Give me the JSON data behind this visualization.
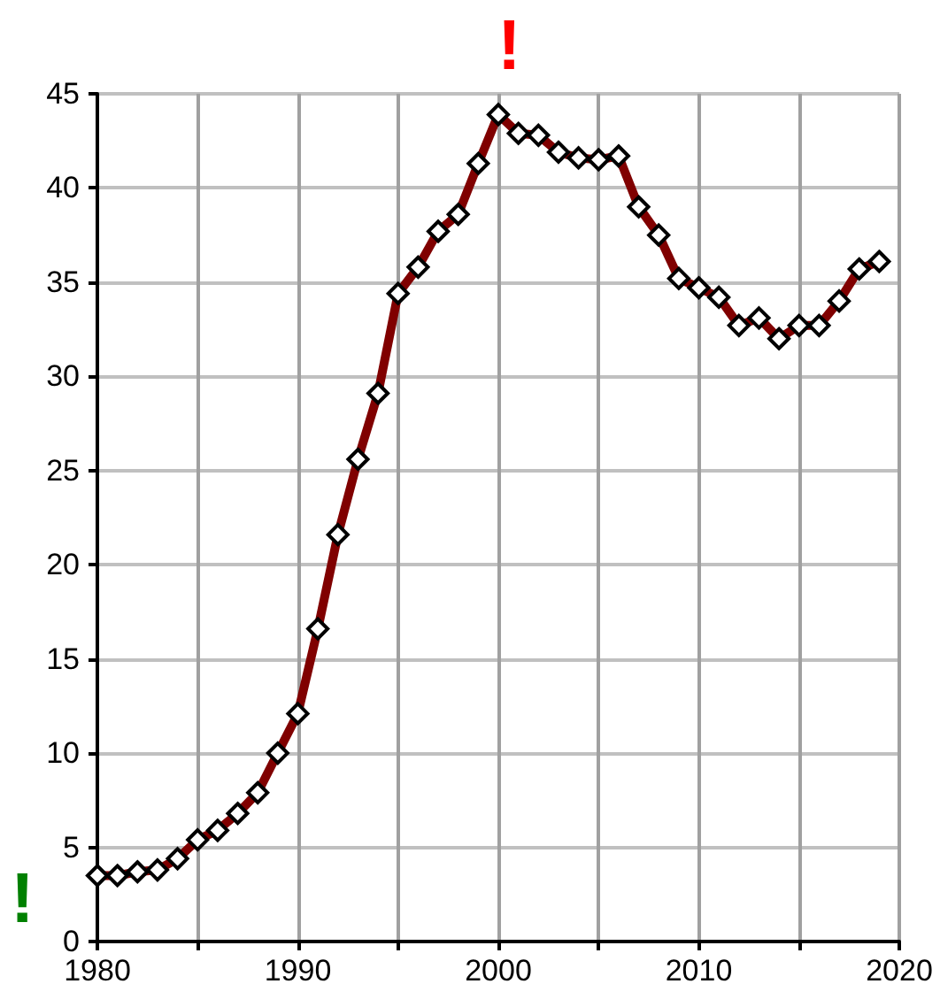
{
  "chart_data": {
    "type": "line",
    "x": [
      1980,
      1981,
      1982,
      1983,
      1984,
      1985,
      1986,
      1987,
      1988,
      1989,
      1990,
      1991,
      1992,
      1993,
      1994,
      1995,
      1996,
      1997,
      1998,
      1999,
      2000,
      2001,
      2002,
      2003,
      2004,
      2005,
      2006,
      2007,
      2008,
      2009,
      2010,
      2011,
      2012,
      2013,
      2014,
      2015,
      2016,
      2017,
      2018,
      2019
    ],
    "series": [
      {
        "color": "#800000",
        "values": [
          3.5,
          3.5,
          3.7,
          3.8,
          4.4,
          5.4,
          5.9,
          6.8,
          7.9,
          10.0,
          12.1,
          16.6,
          21.6,
          25.6,
          29.1,
          34.4,
          35.8,
          37.7,
          38.6,
          41.3,
          43.9,
          42.9,
          42.8,
          41.9,
          41.6,
          41.5,
          41.7,
          39.0,
          37.5,
          35.2,
          34.7,
          34.2,
          32.7,
          33.1,
          32.0,
          32.7,
          32.7,
          34.0,
          35.7,
          36.1
        ]
      }
    ],
    "xlim": [
      1980,
      2020
    ],
    "xticks": [
      1980,
      {
        "value": 1985,
        "label": null
      },
      1990,
      {
        "value": 1995,
        "label": null
      },
      2000,
      {
        "value": 2005,
        "label": null
      },
      2010,
      {
        "value": 2015,
        "label": null
      },
      2020
    ],
    "ylim": [
      0,
      45
    ],
    "yticks": [
      0,
      5,
      10,
      15,
      20,
      25,
      30,
      35,
      40,
      45
    ],
    "annotations": [
      "!",
      "!"
    ],
    "grid": true,
    "marker": "diamond",
    "line_style": "solid"
  }
}
